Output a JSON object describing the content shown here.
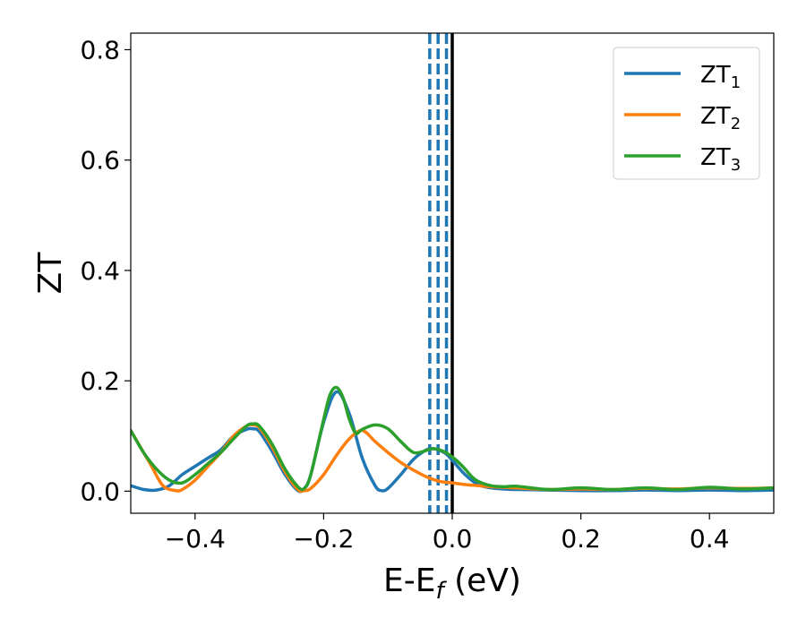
{
  "chart_data": {
    "type": "line",
    "title": "",
    "xlabel": {
      "main": "E-E",
      "sub": "f",
      "suffix": " (eV)"
    },
    "ylabel": "ZT",
    "xlim": [
      -0.5,
      0.5
    ],
    "ylim": [
      -0.04,
      0.83
    ],
    "xticks": [
      -0.4,
      -0.2,
      0.0,
      0.2,
      0.4
    ],
    "xtick_labels": [
      "−0.4",
      "−0.2",
      "0.0",
      "0.2",
      "0.4"
    ],
    "yticks": [
      0.0,
      0.2,
      0.4,
      0.6,
      0.8
    ],
    "ytick_labels": [
      "0.0",
      "0.2",
      "0.4",
      "0.6",
      "0.8"
    ],
    "grid": false,
    "legend_position": "top-right",
    "vlines": [
      {
        "x": -0.035,
        "style": "dashed",
        "color": "#1f77b4"
      },
      {
        "x": -0.022,
        "style": "dashed",
        "color": "#1f77b4"
      },
      {
        "x": -0.009,
        "style": "dashed",
        "color": "#1f77b4"
      },
      {
        "x": 0.0,
        "style": "solid",
        "color": "#000000"
      }
    ],
    "series": [
      {
        "name": "ZT",
        "sub": "1",
        "color": "#1f77b4",
        "x": [
          -0.5,
          -0.48,
          -0.46,
          -0.44,
          -0.42,
          -0.4,
          -0.38,
          -0.36,
          -0.34,
          -0.32,
          -0.31,
          -0.3,
          -0.28,
          -0.26,
          -0.24,
          -0.23,
          -0.22,
          -0.2,
          -0.18,
          -0.16,
          -0.14,
          -0.12,
          -0.11,
          -0.1,
          -0.08,
          -0.06,
          -0.04,
          -0.03,
          -0.02,
          -0.01,
          0.0,
          0.02,
          0.04,
          0.06,
          0.08,
          0.1,
          0.15,
          0.2,
          0.25,
          0.3,
          0.35,
          0.4,
          0.45,
          0.5
        ],
        "y": [
          0.01,
          0.003,
          0.002,
          0.01,
          0.03,
          0.045,
          0.06,
          0.075,
          0.1,
          0.112,
          0.113,
          0.108,
          0.072,
          0.03,
          0.001,
          0.005,
          0.03,
          0.125,
          0.18,
          0.14,
          0.06,
          0.01,
          0.001,
          0.005,
          0.03,
          0.058,
          0.075,
          0.077,
          0.074,
          0.068,
          0.056,
          0.03,
          0.012,
          0.006,
          0.004,
          0.003,
          0.002,
          0.001,
          0.001,
          0.002,
          0.001,
          0.002,
          0.001,
          0.002
        ]
      },
      {
        "name": "ZT",
        "sub": "2",
        "color": "#ff7f0e",
        "x": [
          -0.5,
          -0.47,
          -0.45,
          -0.43,
          -0.42,
          -0.4,
          -0.38,
          -0.36,
          -0.34,
          -0.32,
          -0.31,
          -0.3,
          -0.28,
          -0.26,
          -0.24,
          -0.23,
          -0.22,
          -0.2,
          -0.18,
          -0.16,
          -0.14,
          -0.12,
          -0.1,
          -0.08,
          -0.06,
          -0.04,
          -0.02,
          0.0,
          0.02,
          0.04,
          0.06,
          0.08,
          0.1,
          0.15,
          0.2,
          0.25,
          0.3,
          0.35,
          0.4,
          0.45,
          0.5
        ],
        "y": [
          0.11,
          0.05,
          0.01,
          0.001,
          0.003,
          0.02,
          0.045,
          0.07,
          0.1,
          0.118,
          0.12,
          0.115,
          0.08,
          0.035,
          0.003,
          0.001,
          0.005,
          0.03,
          0.065,
          0.095,
          0.11,
          0.09,
          0.07,
          0.052,
          0.038,
          0.026,
          0.018,
          0.015,
          0.012,
          0.01,
          0.008,
          0.007,
          0.006,
          0.003,
          0.004,
          0.003,
          0.005,
          0.004,
          0.006,
          0.005,
          0.006
        ]
      },
      {
        "name": "ZT",
        "sub": "3",
        "color": "#2ca02c",
        "x": [
          -0.5,
          -0.48,
          -0.46,
          -0.44,
          -0.42,
          -0.4,
          -0.38,
          -0.36,
          -0.34,
          -0.32,
          -0.31,
          -0.3,
          -0.28,
          -0.26,
          -0.24,
          -0.23,
          -0.22,
          -0.2,
          -0.19,
          -0.18,
          -0.17,
          -0.16,
          -0.15,
          -0.14,
          -0.12,
          -0.1,
          -0.08,
          -0.06,
          -0.04,
          -0.03,
          -0.02,
          -0.01,
          0.0,
          0.01,
          0.02,
          0.03,
          0.04,
          0.06,
          0.08,
          0.1,
          0.15,
          0.2,
          0.25,
          0.3,
          0.35,
          0.4,
          0.45,
          0.5
        ],
        "y": [
          0.11,
          0.07,
          0.04,
          0.02,
          0.015,
          0.03,
          0.05,
          0.07,
          0.095,
          0.118,
          0.122,
          0.118,
          0.085,
          0.04,
          0.008,
          0.005,
          0.03,
          0.13,
          0.175,
          0.188,
          0.17,
          0.13,
          0.105,
          0.112,
          0.12,
          0.113,
          0.09,
          0.07,
          0.074,
          0.077,
          0.075,
          0.07,
          0.062,
          0.052,
          0.04,
          0.027,
          0.018,
          0.01,
          0.008,
          0.009,
          0.003,
          0.006,
          0.003,
          0.006,
          0.003,
          0.007,
          0.004,
          0.006
        ]
      }
    ]
  }
}
